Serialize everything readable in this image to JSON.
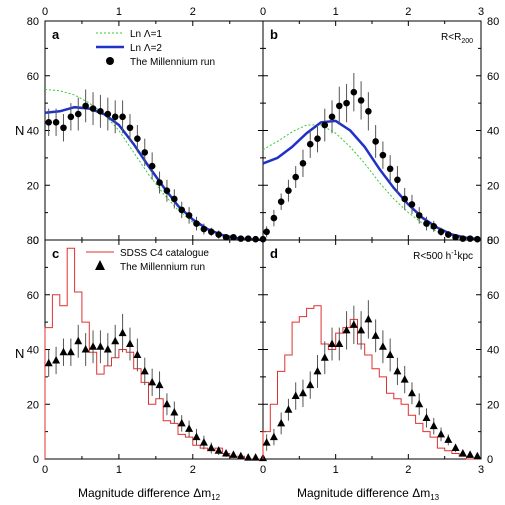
{
  "colors": {
    "ln1": "#33cc33",
    "ln2": "#1e32c8",
    "sdss": "#e03030",
    "millennium": "#000000",
    "frame": "#000000"
  },
  "figure": {
    "xlabel_left_main": "Magnitude difference ",
    "xlabel_left_sym": "Δm",
    "xlabel_left_sub": "12",
    "xlabel_right_main": "Magnitude difference ",
    "xlabel_right_sym": "Δm",
    "xlabel_right_sub": "13",
    "ylabel_top": "N",
    "ylabel_bottom": "N"
  },
  "chart_data": [
    {
      "id": "a",
      "type": "line",
      "panel_label": "a",
      "xlim": [
        0,
        2.95
      ],
      "ylim": [
        0,
        80
      ],
      "xticks": [
        "0",
        "1",
        "2"
      ],
      "yticks": [
        "0",
        "20",
        "40",
        "60",
        "80"
      ],
      "legend": [
        {
          "label": "Ln Λ=1",
          "kind": "line",
          "color": "ln1"
        },
        {
          "label": "Ln Λ=2",
          "kind": "line",
          "color": "ln2"
        },
        {
          "label": "The Millennium run",
          "kind": "circle"
        }
      ],
      "series": [
        {
          "name": "Ln Λ=1",
          "kind": "line",
          "dashed": true,
          "color": "ln1",
          "x": [
            0,
            0.2,
            0.4,
            0.6,
            0.8,
            1.0,
            1.2,
            1.4,
            1.6,
            1.8,
            2.0,
            2.2,
            2.4,
            2.6,
            2.8,
            2.95
          ],
          "y": [
            55,
            54.5,
            53,
            50,
            46,
            40,
            32,
            24,
            17,
            11,
            6.5,
            3.5,
            1.5,
            0.6,
            0.2,
            0
          ]
        },
        {
          "name": "Ln Λ=2",
          "kind": "line",
          "color": "ln2",
          "x": [
            0,
            0.2,
            0.4,
            0.6,
            0.8,
            1.0,
            1.2,
            1.4,
            1.6,
            1.8,
            2.0,
            2.2,
            2.4,
            2.6,
            2.8,
            2.95
          ],
          "y": [
            46.5,
            47,
            48.5,
            48,
            46,
            42,
            35,
            27,
            19.5,
            12.5,
            7.5,
            4,
            1.8,
            0.7,
            0.2,
            0
          ]
        },
        {
          "name": "The Millennium run",
          "kind": "circles",
          "x": [
            0.05,
            0.15,
            0.25,
            0.35,
            0.45,
            0.55,
            0.65,
            0.75,
            0.85,
            0.95,
            1.05,
            1.15,
            1.25,
            1.35,
            1.45,
            1.55,
            1.65,
            1.75,
            1.85,
            1.95,
            2.05,
            2.15,
            2.25,
            2.35,
            2.45,
            2.55,
            2.65,
            2.75,
            2.85,
            2.95
          ],
          "y": [
            43,
            43,
            41,
            45,
            46,
            49,
            48,
            47,
            46,
            45,
            45,
            41,
            37,
            32,
            27,
            21,
            18,
            15,
            11,
            9,
            6,
            4,
            3,
            2,
            1,
            1,
            0.5,
            0.5,
            0.3,
            0.3
          ],
          "err": [
            5,
            5,
            5,
            5,
            6,
            6,
            6,
            6,
            6,
            6,
            6,
            5,
            5,
            5,
            5,
            4,
            4,
            3.5,
            3,
            3,
            2.5,
            2,
            1.5,
            1.5,
            1,
            1,
            0.7,
            0.7,
            0.5,
            0.5
          ]
        }
      ]
    },
    {
      "id": "b",
      "type": "line",
      "panel_label": "b",
      "annotation": "R<R",
      "annotation_sub": "200",
      "xlim": [
        0,
        3
      ],
      "ylim": [
        0,
        80
      ],
      "xticks": [
        "0",
        "1",
        "2",
        "3"
      ],
      "yticks": [
        "0",
        "20",
        "40",
        "60",
        "80"
      ],
      "series": [
        {
          "name": "Ln Λ=1",
          "kind": "line",
          "dashed": true,
          "color": "ln1",
          "x": [
            0,
            0.2,
            0.4,
            0.6,
            0.8,
            1.0,
            1.2,
            1.4,
            1.6,
            1.8,
            2.0,
            2.2,
            2.4,
            2.6,
            2.8,
            3.0
          ],
          "y": [
            33,
            36,
            39.5,
            42,
            42,
            39,
            34,
            28,
            21,
            15,
            10,
            6,
            3,
            1.5,
            0.5,
            0.2
          ]
        },
        {
          "name": "Ln Λ=2",
          "kind": "line",
          "color": "ln2",
          "x": [
            0,
            0.2,
            0.4,
            0.6,
            0.8,
            1.0,
            1.2,
            1.4,
            1.6,
            1.8,
            2.0,
            2.2,
            2.4,
            2.6,
            2.8,
            3.0
          ],
          "y": [
            28,
            30,
            34,
            39,
            43,
            43.5,
            40,
            34,
            26,
            19,
            13,
            8,
            4.5,
            2,
            0.8,
            0.3
          ]
        },
        {
          "name": "The Millennium run",
          "kind": "circles",
          "x": [
            0.05,
            0.15,
            0.25,
            0.35,
            0.45,
            0.55,
            0.65,
            0.75,
            0.85,
            0.95,
            1.05,
            1.15,
            1.25,
            1.35,
            1.45,
            1.55,
            1.65,
            1.75,
            1.85,
            1.95,
            2.05,
            2.15,
            2.25,
            2.35,
            2.45,
            2.55,
            2.65,
            2.75,
            2.85,
            2.95
          ],
          "y": [
            3,
            8,
            14,
            18,
            23,
            28,
            35,
            37,
            42,
            45,
            49,
            50,
            54,
            51,
            47,
            36,
            31,
            26,
            22,
            15,
            13,
            9,
            6,
            5,
            3,
            2,
            1,
            0.5,
            0.5,
            0.3
          ],
          "err": [
            2,
            3,
            3,
            4,
            4,
            5,
            5,
            5,
            6,
            6,
            7,
            7,
            7,
            7,
            7,
            6,
            5,
            5,
            5,
            4,
            3.5,
            3,
            2.5,
            2,
            1.5,
            1.2,
            1,
            0.7,
            0.5,
            0.5
          ]
        }
      ]
    },
    {
      "id": "c",
      "type": "line",
      "panel_label": "c",
      "xlim": [
        0,
        2.95
      ],
      "ylim": [
        0,
        80
      ],
      "xticks": [
        "0",
        "1",
        "2"
      ],
      "yticks": [
        "0",
        "20",
        "40",
        "60",
        "80"
      ],
      "legend": [
        {
          "label": "SDSS C4 catalogue",
          "kind": "line",
          "color": "sdss"
        },
        {
          "label": "The Millennium run",
          "kind": "triangle"
        }
      ],
      "series": [
        {
          "name": "SDSS C4 catalogue",
          "kind": "step",
          "color": "sdss",
          "edges": [
            0,
            0.1,
            0.2,
            0.3,
            0.4,
            0.5,
            0.6,
            0.7,
            0.8,
            0.9,
            1.0,
            1.1,
            1.2,
            1.3,
            1.4,
            1.5,
            1.6,
            1.7,
            1.8,
            1.9,
            2.0,
            2.1,
            2.2,
            2.3,
            2.4,
            2.5,
            2.6,
            2.7,
            2.8,
            2.9,
            3.0
          ],
          "values": [
            48,
            60,
            56,
            77,
            61,
            50,
            39,
            31,
            34,
            37,
            40,
            39,
            33,
            28,
            20,
            22,
            14,
            13,
            9,
            8,
            5,
            4,
            3,
            4,
            2,
            1,
            1,
            0,
            0,
            0
          ]
        },
        {
          "name": "The Millennium run",
          "kind": "triangles",
          "x": [
            0.05,
            0.15,
            0.25,
            0.35,
            0.45,
            0.55,
            0.65,
            0.75,
            0.85,
            0.95,
            1.05,
            1.15,
            1.25,
            1.35,
            1.45,
            1.55,
            1.65,
            1.75,
            1.85,
            1.95,
            2.05,
            2.15,
            2.25,
            2.35,
            2.45,
            2.55,
            2.65,
            2.75,
            2.85,
            2.95
          ],
          "y": [
            35,
            36,
            39,
            39,
            43,
            40,
            41,
            41,
            40,
            43,
            46,
            42,
            38,
            32,
            28,
            27,
            20,
            17,
            13,
            11,
            8,
            6,
            4,
            3,
            2,
            1.5,
            1,
            0.5,
            0.5,
            0.3
          ],
          "err": [
            5,
            5,
            5,
            5,
            6,
            6,
            6,
            6,
            6,
            6,
            7,
            6,
            6,
            5,
            5,
            5,
            4,
            4,
            3,
            3,
            3,
            2.5,
            2,
            1.5,
            1.2,
            1,
            0.8,
            0.6,
            0.5,
            0.5
          ]
        }
      ]
    },
    {
      "id": "d",
      "type": "line",
      "panel_label": "d",
      "annotation": "R<500 h",
      "annotation_sup": "-1",
      "annotation_tail": "kpc",
      "xlim": [
        0,
        3
      ],
      "ylim": [
        0,
        80
      ],
      "xticks": [
        "0",
        "1",
        "2",
        "3"
      ],
      "yticks": [
        "0",
        "20",
        "40",
        "60",
        "80"
      ],
      "series": [
        {
          "name": "SDSS C4 catalogue",
          "kind": "step",
          "color": "sdss",
          "edges": [
            0,
            0.1,
            0.2,
            0.3,
            0.4,
            0.5,
            0.6,
            0.7,
            0.8,
            0.9,
            1.0,
            1.1,
            1.2,
            1.3,
            1.4,
            1.5,
            1.6,
            1.7,
            1.8,
            1.9,
            2.0,
            2.1,
            2.2,
            2.3,
            2.4,
            2.5,
            2.6,
            2.7,
            2.8,
            2.9,
            3.0
          ],
          "values": [
            10,
            20,
            32,
            38,
            50,
            52,
            55,
            56,
            42,
            40,
            46,
            48,
            51,
            42,
            38,
            33,
            30,
            24,
            22,
            20,
            16,
            13,
            10,
            8,
            4,
            3,
            2,
            1,
            0,
            0
          ]
        },
        {
          "name": "The Millennium run",
          "kind": "triangles",
          "x": [
            0.05,
            0.15,
            0.25,
            0.35,
            0.45,
            0.55,
            0.65,
            0.75,
            0.85,
            0.95,
            1.05,
            1.15,
            1.25,
            1.35,
            1.45,
            1.55,
            1.65,
            1.75,
            1.85,
            1.95,
            2.05,
            2.15,
            2.25,
            2.35,
            2.45,
            2.55,
            2.65,
            2.75,
            2.85,
            2.95
          ],
          "y": [
            6,
            8,
            13,
            18,
            23,
            24,
            27,
            32,
            37,
            42,
            42,
            47,
            49,
            47,
            51,
            45,
            41,
            38,
            32,
            29,
            24,
            20,
            15,
            12,
            9,
            7,
            4,
            2,
            1.5,
            1
          ],
          "err": [
            3,
            3,
            4,
            4,
            5,
            5,
            5,
            6,
            6,
            6,
            6,
            7,
            7,
            7,
            7,
            6,
            6,
            6,
            5,
            5,
            4,
            4,
            3.5,
            3,
            2.5,
            2,
            1.5,
            1,
            0.8,
            0.6
          ]
        }
      ]
    }
  ]
}
